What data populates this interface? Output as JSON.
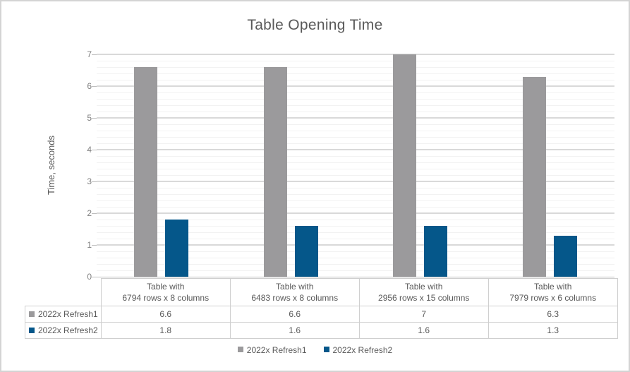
{
  "chart_data": {
    "type": "bar",
    "title": "Table Opening Time",
    "ylabel": "Time, seconds",
    "xlabel": "",
    "ylim": [
      0,
      7
    ],
    "y_ticks": [
      0,
      1,
      2,
      3,
      4,
      5,
      6,
      7
    ],
    "y_major_step": 1,
    "y_minor_step": 0.2,
    "grid": "horizontal major and minor gridlines",
    "legend_position": "bottom",
    "has_data_table": true,
    "categories": [
      "Table with\n6794 rows x 8 columns",
      "Table with\n6483 rows x 8 columns",
      "Table with\n2956 rows x 15 columns",
      "Table with\n7979 rows x 6 columns"
    ],
    "series": [
      {
        "name": "2022x Refresh1",
        "color": "#9B9A9C",
        "values": [
          6.6,
          6.6,
          7,
          6.3
        ]
      },
      {
        "name": "2022x Refresh2",
        "color": "#05578A",
        "values": [
          1.8,
          1.6,
          1.6,
          1.3
        ]
      }
    ]
  },
  "colors": {
    "frame_border": "#D4D4D4",
    "grid_major": "#D9D9D9",
    "grid_minor": "#F2F2F2",
    "axis_line": "#BFBFBF",
    "table_border": "#CFCFCF",
    "title_text": "#595959",
    "tick_text": "#7F7F7F",
    "table_text": "#595959"
  }
}
